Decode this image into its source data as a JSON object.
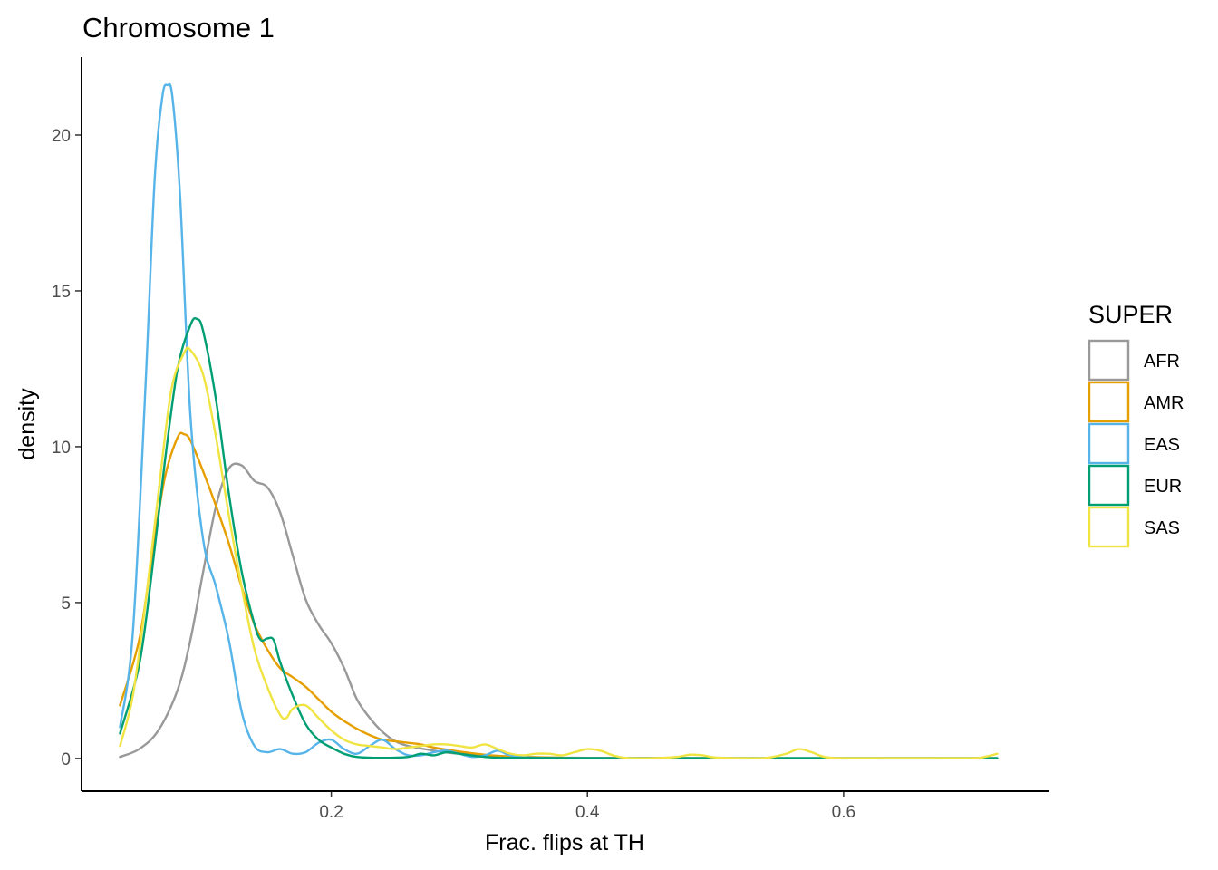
{
  "chart_data": {
    "type": "line",
    "title": "Chromosome 1",
    "xlabel": "Frac. flips at TH",
    "ylabel": "density",
    "xlim": [
      0.005,
      0.76
    ],
    "ylim": [
      -1.05,
      22.5
    ],
    "x_ticks": [
      {
        "value": 0.2,
        "label": "0.2"
      },
      {
        "value": 0.4,
        "label": "0.4"
      },
      {
        "value": 0.6,
        "label": "0.6"
      }
    ],
    "y_ticks": [
      {
        "value": 0,
        "label": "0"
      },
      {
        "value": 5,
        "label": "5"
      },
      {
        "value": 10,
        "label": "10"
      },
      {
        "value": 15,
        "label": "15"
      },
      {
        "value": 20,
        "label": "20"
      }
    ],
    "grid": false,
    "legend": {
      "title": "SUPER",
      "placement": "right"
    },
    "series": [
      {
        "name": "AFR",
        "color": "#999999",
        "points": [
          [
            0.035,
            0.05
          ],
          [
            0.05,
            0.3
          ],
          [
            0.065,
            0.9
          ],
          [
            0.08,
            2.2
          ],
          [
            0.09,
            3.8
          ],
          [
            0.1,
            6.0
          ],
          [
            0.11,
            8.1
          ],
          [
            0.12,
            9.3
          ],
          [
            0.13,
            9.4
          ],
          [
            0.14,
            8.9
          ],
          [
            0.15,
            8.7
          ],
          [
            0.16,
            7.9
          ],
          [
            0.17,
            6.5
          ],
          [
            0.18,
            5.1
          ],
          [
            0.19,
            4.3
          ],
          [
            0.2,
            3.7
          ],
          [
            0.21,
            2.9
          ],
          [
            0.22,
            1.9
          ],
          [
            0.23,
            1.3
          ],
          [
            0.24,
            0.85
          ],
          [
            0.25,
            0.55
          ],
          [
            0.26,
            0.4
          ],
          [
            0.28,
            0.25
          ],
          [
            0.3,
            0.15
          ],
          [
            0.33,
            0.08
          ],
          [
            0.36,
            0.04
          ],
          [
            0.4,
            0.02
          ],
          [
            0.5,
            0.01
          ],
          [
            0.72,
            0.01
          ]
        ]
      },
      {
        "name": "AMR",
        "color": "#E69F00",
        "points": [
          [
            0.035,
            1.7
          ],
          [
            0.05,
            3.8
          ],
          [
            0.06,
            6.5
          ],
          [
            0.07,
            9.0
          ],
          [
            0.08,
            10.3
          ],
          [
            0.085,
            10.4
          ],
          [
            0.09,
            10.2
          ],
          [
            0.1,
            9.2
          ],
          [
            0.11,
            8.1
          ],
          [
            0.12,
            6.9
          ],
          [
            0.13,
            5.5
          ],
          [
            0.14,
            4.3
          ],
          [
            0.15,
            3.5
          ],
          [
            0.16,
            2.9
          ],
          [
            0.17,
            2.6
          ],
          [
            0.18,
            2.3
          ],
          [
            0.19,
            1.9
          ],
          [
            0.2,
            1.5
          ],
          [
            0.21,
            1.2
          ],
          [
            0.22,
            0.95
          ],
          [
            0.23,
            0.75
          ],
          [
            0.24,
            0.6
          ],
          [
            0.25,
            0.55
          ],
          [
            0.26,
            0.5
          ],
          [
            0.27,
            0.45
          ],
          [
            0.28,
            0.35
          ],
          [
            0.3,
            0.22
          ],
          [
            0.32,
            0.12
          ],
          [
            0.34,
            0.06
          ],
          [
            0.37,
            0.03
          ],
          [
            0.4,
            0.01
          ],
          [
            0.5,
            0.01
          ],
          [
            0.72,
            0.01
          ]
        ]
      },
      {
        "name": "EAS",
        "color": "#56B4E9",
        "points": [
          [
            0.035,
            1.0
          ],
          [
            0.045,
            4.0
          ],
          [
            0.055,
            12.0
          ],
          [
            0.062,
            18.5
          ],
          [
            0.068,
            21.2
          ],
          [
            0.072,
            21.6
          ],
          [
            0.076,
            21.2
          ],
          [
            0.082,
            18.0
          ],
          [
            0.09,
            11.0
          ],
          [
            0.1,
            7.0
          ],
          [
            0.11,
            5.5
          ],
          [
            0.12,
            3.8
          ],
          [
            0.13,
            1.5
          ],
          [
            0.14,
            0.4
          ],
          [
            0.15,
            0.2
          ],
          [
            0.16,
            0.3
          ],
          [
            0.17,
            0.15
          ],
          [
            0.18,
            0.2
          ],
          [
            0.19,
            0.5
          ],
          [
            0.2,
            0.6
          ],
          [
            0.21,
            0.3
          ],
          [
            0.22,
            0.15
          ],
          [
            0.23,
            0.4
          ],
          [
            0.24,
            0.6
          ],
          [
            0.25,
            0.3
          ],
          [
            0.26,
            0.1
          ],
          [
            0.27,
            0.1
          ],
          [
            0.28,
            0.2
          ],
          [
            0.29,
            0.25
          ],
          [
            0.3,
            0.15
          ],
          [
            0.31,
            0.05
          ],
          [
            0.32,
            0.1
          ],
          [
            0.33,
            0.25
          ],
          [
            0.34,
            0.1
          ],
          [
            0.36,
            0.02
          ],
          [
            0.4,
            0.01
          ],
          [
            0.5,
            0.01
          ],
          [
            0.72,
            0.01
          ]
        ]
      },
      {
        "name": "EUR",
        "color": "#009E73",
        "points": [
          [
            0.035,
            0.8
          ],
          [
            0.05,
            3.0
          ],
          [
            0.06,
            6.0
          ],
          [
            0.07,
            9.5
          ],
          [
            0.08,
            12.5
          ],
          [
            0.09,
            13.9
          ],
          [
            0.095,
            14.1
          ],
          [
            0.1,
            13.7
          ],
          [
            0.11,
            11.5
          ],
          [
            0.12,
            8.5
          ],
          [
            0.13,
            6.0
          ],
          [
            0.14,
            4.3
          ],
          [
            0.145,
            3.8
          ],
          [
            0.15,
            3.85
          ],
          [
            0.155,
            3.8
          ],
          [
            0.16,
            3.1
          ],
          [
            0.17,
            2.0
          ],
          [
            0.18,
            1.1
          ],
          [
            0.19,
            0.6
          ],
          [
            0.2,
            0.35
          ],
          [
            0.21,
            0.15
          ],
          [
            0.22,
            0.05
          ],
          [
            0.24,
            0.02
          ],
          [
            0.26,
            0.05
          ],
          [
            0.27,
            0.15
          ],
          [
            0.28,
            0.1
          ],
          [
            0.29,
            0.2
          ],
          [
            0.3,
            0.15
          ],
          [
            0.32,
            0.05
          ],
          [
            0.34,
            0.02
          ],
          [
            0.4,
            0.01
          ],
          [
            0.5,
            0.01
          ],
          [
            0.72,
            0.01
          ]
        ]
      },
      {
        "name": "SAS",
        "color": "#F0E442",
        "points": [
          [
            0.035,
            0.4
          ],
          [
            0.045,
            2.0
          ],
          [
            0.055,
            5.0
          ],
          [
            0.065,
            8.5
          ],
          [
            0.075,
            11.8
          ],
          [
            0.085,
            13.0
          ],
          [
            0.09,
            13.1
          ],
          [
            0.1,
            12.3
          ],
          [
            0.11,
            10.3
          ],
          [
            0.12,
            7.8
          ],
          [
            0.13,
            5.5
          ],
          [
            0.14,
            3.5
          ],
          [
            0.15,
            2.3
          ],
          [
            0.16,
            1.4
          ],
          [
            0.165,
            1.3
          ],
          [
            0.17,
            1.6
          ],
          [
            0.18,
            1.7
          ],
          [
            0.19,
            1.3
          ],
          [
            0.2,
            0.9
          ],
          [
            0.21,
            0.6
          ],
          [
            0.22,
            0.45
          ],
          [
            0.23,
            0.4
          ],
          [
            0.24,
            0.35
          ],
          [
            0.25,
            0.3
          ],
          [
            0.26,
            0.35
          ],
          [
            0.27,
            0.4
          ],
          [
            0.28,
            0.45
          ],
          [
            0.29,
            0.45
          ],
          [
            0.3,
            0.4
          ],
          [
            0.31,
            0.35
          ],
          [
            0.32,
            0.45
          ],
          [
            0.33,
            0.3
          ],
          [
            0.34,
            0.15
          ],
          [
            0.35,
            0.1
          ],
          [
            0.36,
            0.15
          ],
          [
            0.37,
            0.15
          ],
          [
            0.38,
            0.1
          ],
          [
            0.39,
            0.2
          ],
          [
            0.4,
            0.3
          ],
          [
            0.41,
            0.25
          ],
          [
            0.42,
            0.1
          ],
          [
            0.43,
            0.02
          ],
          [
            0.45,
            0.01
          ],
          [
            0.47,
            0.05
          ],
          [
            0.48,
            0.12
          ],
          [
            0.49,
            0.1
          ],
          [
            0.5,
            0.03
          ],
          [
            0.52,
            0.01
          ],
          [
            0.54,
            0.02
          ],
          [
            0.555,
            0.15
          ],
          [
            0.565,
            0.3
          ],
          [
            0.575,
            0.2
          ],
          [
            0.585,
            0.05
          ],
          [
            0.6,
            0.01
          ],
          [
            0.65,
            0.01
          ],
          [
            0.7,
            0.01
          ],
          [
            0.71,
            0.05
          ],
          [
            0.72,
            0.15
          ]
        ]
      }
    ]
  }
}
